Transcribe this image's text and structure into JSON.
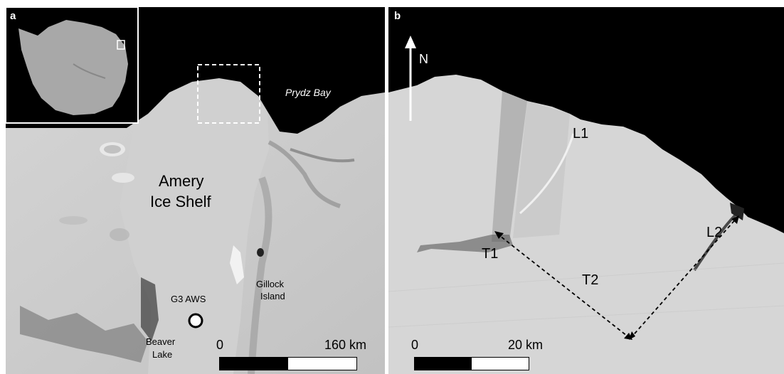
{
  "panel_a": {
    "letter": "a",
    "labels": {
      "prydz_bay": "Prydz Bay",
      "amery_line1": "Amery",
      "amery_line2": "Ice Shelf",
      "g3_aws": "G3 AWS",
      "gillock_line1": "Gillock",
      "gillock_line2": "Island",
      "beaver_line1": "Beaver",
      "beaver_line2": "Lake"
    },
    "scale": {
      "zero": "0",
      "max": "160 km"
    }
  },
  "panel_b": {
    "letter": "b",
    "north": "N",
    "labels": {
      "l1": "L1",
      "l2": "L2",
      "t1": "T1",
      "t2": "T2"
    },
    "scale": {
      "zero": "0",
      "max": "20 km"
    }
  }
}
